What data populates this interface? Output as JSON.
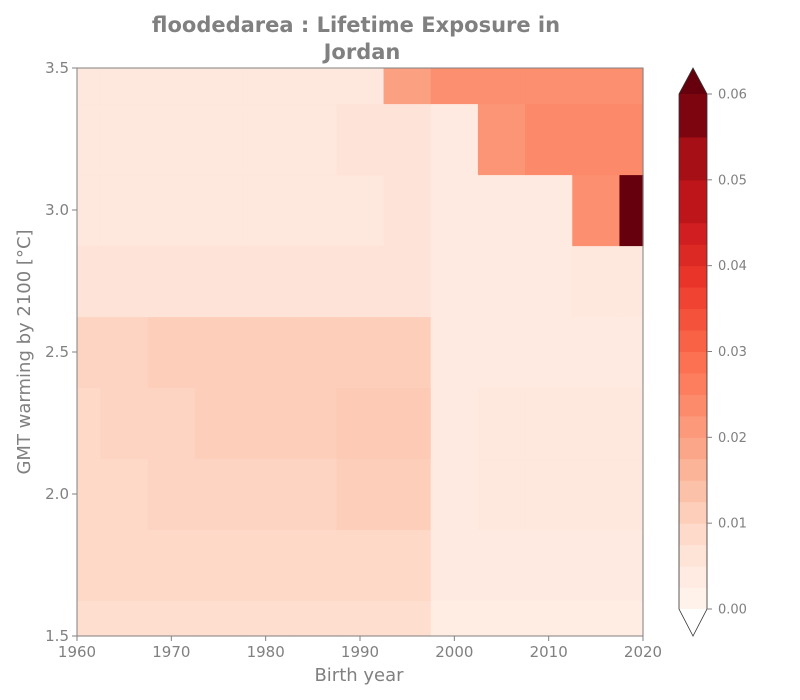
{
  "chart_data": {
    "type": "heatmap",
    "title_line1": "floodedarea : Lifetime Exposure in",
    "title_line2": "Jordan",
    "xlabel": "Birth year",
    "ylabel": "GMT warming by 2100 [°C]",
    "xlim": [
      1960,
      2020
    ],
    "ylim": [
      1.5,
      3.5
    ],
    "xticks": [
      1960,
      1970,
      1980,
      1990,
      2000,
      2010,
      2020
    ],
    "xtick_labels": [
      "1960",
      "1970",
      "1980",
      "1990",
      "2000",
      "2010",
      "2020"
    ],
    "yticks": [
      1.5,
      2.0,
      2.5,
      3.0,
      3.5
    ],
    "ytick_labels": [
      "1.5",
      "2.0",
      "2.5",
      "3.0",
      "3.5"
    ],
    "colormap": "Reds",
    "colorbar": {
      "min": 0.0,
      "max": 0.06,
      "extend": "both",
      "ticks": [
        0.0,
        0.01,
        0.02,
        0.03,
        0.04,
        0.05,
        0.06
      ],
      "tick_labels": [
        "0.00",
        "0.01",
        "0.02",
        "0.03",
        "0.04",
        "0.05",
        "0.06"
      ],
      "level_boundaries": [
        0,
        0.0025,
        0.005,
        0.0075,
        0.01,
        0.0125,
        0.015,
        0.0175,
        0.02,
        0.0225,
        0.025,
        0.0275,
        0.03,
        0.0325,
        0.035,
        0.0375,
        0.04,
        0.0425,
        0.045,
        0.05,
        0.055,
        0.06
      ]
    },
    "x": [
      1960,
      1965,
      1970,
      1975,
      1980,
      1985,
      1990,
      1995,
      2000,
      2005,
      2010,
      2015,
      2020
    ],
    "y": [
      1.5,
      1.75,
      2.0,
      2.25,
      2.5,
      2.75,
      3.0,
      3.25,
      3.5
    ],
    "z": [
      [
        0.008,
        0.008,
        0.008,
        0.008,
        0.008,
        0.008,
        0.008,
        0.008,
        0.003,
        0.003,
        0.003,
        0.003,
        0.003
      ],
      [
        0.009,
        0.009,
        0.009,
        0.009,
        0.009,
        0.009,
        0.009,
        0.009,
        0.004,
        0.004,
        0.004,
        0.004,
        0.004
      ],
      [
        0.009,
        0.009,
        0.01,
        0.01,
        0.01,
        0.01,
        0.011,
        0.011,
        0.004,
        0.005,
        0.005,
        0.005,
        0.005
      ],
      [
        0.009,
        0.01,
        0.01,
        0.011,
        0.011,
        0.011,
        0.012,
        0.012,
        0.004,
        0.005,
        0.005,
        0.005,
        0.005
      ],
      [
        0.01,
        0.01,
        0.011,
        0.011,
        0.011,
        0.011,
        0.011,
        0.011,
        0.004,
        0.004,
        0.004,
        0.004,
        0.004
      ],
      [
        0.006,
        0.006,
        0.006,
        0.006,
        0.006,
        0.006,
        0.006,
        0.006,
        0.004,
        0.004,
        0.004,
        0.005,
        0.005
      ],
      [
        0.005,
        0.005,
        0.005,
        0.005,
        0.005,
        0.005,
        0.005,
        0.006,
        0.004,
        0.004,
        0.004,
        0.023,
        0.06
      ],
      [
        0.005,
        0.005,
        0.005,
        0.005,
        0.005,
        0.005,
        0.006,
        0.006,
        0.004,
        0.022,
        0.024,
        0.024,
        0.024
      ],
      [
        0.005,
        0.005,
        0.005,
        0.005,
        0.005,
        0.005,
        0.005,
        0.02,
        0.023,
        0.023,
        0.023,
        0.023,
        0.023
      ]
    ]
  }
}
